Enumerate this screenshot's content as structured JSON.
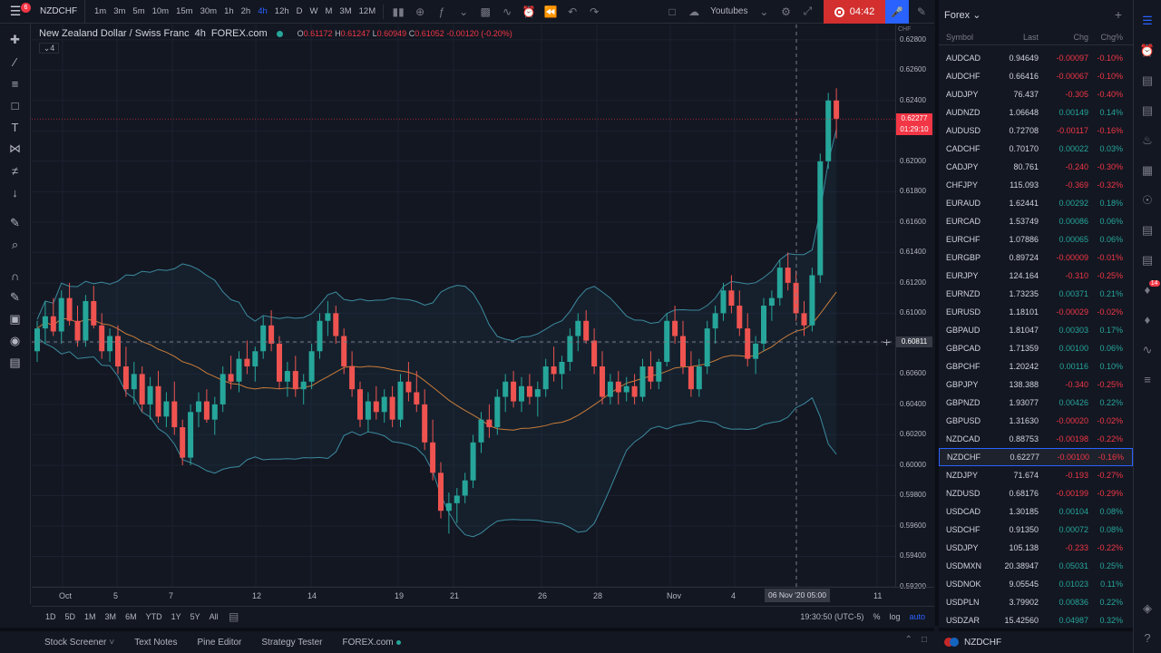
{
  "topbar": {
    "notification_count": "6",
    "symbol": "NZDCHF",
    "intervals": [
      "1m",
      "3m",
      "5m",
      "10m",
      "15m",
      "30m",
      "1h",
      "2h",
      "4h",
      "12h",
      "D",
      "W",
      "M",
      "3M",
      "12M"
    ],
    "active_interval": "4h",
    "layout_name": "Youtubes",
    "recording_time": "04:42"
  },
  "legend": {
    "title": "New Zealand Dollar / Swiss Franc",
    "interval": "4h",
    "source": "FOREX.com",
    "o_label": "O",
    "o": "0.61172",
    "h_label": "H",
    "h": "0.61247",
    "l_label": "L",
    "l": "0.60949",
    "c_label": "C",
    "c": "0.61052",
    "change": "-0.00120 (-0.20%)",
    "indicator_count": "4"
  },
  "price_scale": {
    "currency": "CHF",
    "labels": [
      "0.62800",
      "0.62600",
      "0.62400",
      "0.62200",
      "0.62000",
      "0.61800",
      "0.61600",
      "0.61400",
      "0.61200",
      "0.61000",
      "0.60800",
      "0.60600",
      "0.60400",
      "0.60200",
      "0.60000",
      "0.59800",
      "0.59600",
      "0.59400",
      "0.59200"
    ],
    "current_price": "0.62277",
    "countdown": "01:29:10",
    "crosshair_price": "0.60811"
  },
  "time_scale": {
    "labels": [
      "Oct",
      "5",
      "7",
      "12",
      "14",
      "19",
      "21",
      "26",
      "28",
      "Nov",
      "4",
      "11"
    ],
    "crosshair_time": "06 Nov '20   05:00"
  },
  "range_bar": {
    "ranges": [
      "1D",
      "5D",
      "1M",
      "3M",
      "6M",
      "YTD",
      "1Y",
      "5Y",
      "All"
    ],
    "clock": "19:30:50 (UTC-5)",
    "percent": "%",
    "log": "log",
    "auto": "auto"
  },
  "bottom_tabs": [
    "Stock Screener",
    "Text Notes",
    "Pine Editor",
    "Strategy Tester",
    "FOREX.com"
  ],
  "watchlist": {
    "title": "Forex",
    "columns": {
      "symbol": "Symbol",
      "last": "Last",
      "chg": "Chg",
      "pct": "Chg%"
    },
    "rows": [
      {
        "symbol": "AUDCAD",
        "last": "0.94649",
        "chg": "-0.00097",
        "pct": "-0.10%"
      },
      {
        "symbol": "AUDCHF",
        "last": "0.66416",
        "chg": "-0.00067",
        "pct": "-0.10%"
      },
      {
        "symbol": "AUDJPY",
        "last": "76.437",
        "chg": "-0.305",
        "pct": "-0.40%"
      },
      {
        "symbol": "AUDNZD",
        "last": "1.06648",
        "chg": "0.00149",
        "pct": "0.14%"
      },
      {
        "symbol": "AUDUSD",
        "last": "0.72708",
        "chg": "-0.00117",
        "pct": "-0.16%"
      },
      {
        "symbol": "CADCHF",
        "last": "0.70170",
        "chg": "0.00022",
        "pct": "0.03%"
      },
      {
        "symbol": "CADJPY",
        "last": "80.761",
        "chg": "-0.240",
        "pct": "-0.30%"
      },
      {
        "symbol": "CHFJPY",
        "last": "115.093",
        "chg": "-0.369",
        "pct": "-0.32%"
      },
      {
        "symbol": "EURAUD",
        "last": "1.62441",
        "chg": "0.00292",
        "pct": "0.18%"
      },
      {
        "symbol": "EURCAD",
        "last": "1.53749",
        "chg": "0.00086",
        "pct": "0.06%"
      },
      {
        "symbol": "EURCHF",
        "last": "1.07886",
        "chg": "0.00065",
        "pct": "0.06%"
      },
      {
        "symbol": "EURGBP",
        "last": "0.89724",
        "chg": "-0.00009",
        "pct": "-0.01%"
      },
      {
        "symbol": "EURJPY",
        "last": "124.164",
        "chg": "-0.310",
        "pct": "-0.25%"
      },
      {
        "symbol": "EURNZD",
        "last": "1.73235",
        "chg": "0.00371",
        "pct": "0.21%"
      },
      {
        "symbol": "EURUSD",
        "last": "1.18101",
        "chg": "-0.00029",
        "pct": "-0.02%"
      },
      {
        "symbol": "GBPAUD",
        "last": "1.81047",
        "chg": "0.00303",
        "pct": "0.17%"
      },
      {
        "symbol": "GBPCAD",
        "last": "1.71359",
        "chg": "0.00100",
        "pct": "0.06%"
      },
      {
        "symbol": "GBPCHF",
        "last": "1.20242",
        "chg": "0.00116",
        "pct": "0.10%"
      },
      {
        "symbol": "GBPJPY",
        "last": "138.388",
        "chg": "-0.340",
        "pct": "-0.25%"
      },
      {
        "symbol": "GBPNZD",
        "last": "1.93077",
        "chg": "0.00426",
        "pct": "0.22%"
      },
      {
        "symbol": "GBPUSD",
        "last": "1.31630",
        "chg": "-0.00020",
        "pct": "-0.02%"
      },
      {
        "symbol": "NZDCAD",
        "last": "0.88753",
        "chg": "-0.00198",
        "pct": "-0.22%"
      },
      {
        "symbol": "NZDCHF",
        "last": "0.62277",
        "chg": "-0.00100",
        "pct": "-0.16%"
      },
      {
        "symbol": "NZDJPY",
        "last": "71.674",
        "chg": "-0.193",
        "pct": "-0.27%"
      },
      {
        "symbol": "NZDUSD",
        "last": "0.68176",
        "chg": "-0.00199",
        "pct": "-0.29%"
      },
      {
        "symbol": "USDCAD",
        "last": "1.30185",
        "chg": "0.00104",
        "pct": "0.08%"
      },
      {
        "symbol": "USDCHF",
        "last": "0.91350",
        "chg": "0.00072",
        "pct": "0.08%"
      },
      {
        "symbol": "USDJPY",
        "last": "105.138",
        "chg": "-0.233",
        "pct": "-0.22%"
      },
      {
        "symbol": "USDMXN",
        "last": "20.38947",
        "chg": "0.05031",
        "pct": "0.25%"
      },
      {
        "symbol": "USDNOK",
        "last": "9.05545",
        "chg": "0.01023",
        "pct": "0.11%"
      },
      {
        "symbol": "USDPLN",
        "last": "3.79902",
        "chg": "0.00836",
        "pct": "0.22%"
      },
      {
        "symbol": "USDZAR",
        "last": "15.42560",
        "chg": "0.04987",
        "pct": "0.32%"
      }
    ],
    "selected": "NZDCHF"
  },
  "detail_symbol": "NZDCHF",
  "rail_badge": "14",
  "colors": {
    "up": "#26a69a",
    "down": "#ef5350",
    "accent": "#2962ff",
    "bb": "#3c8a9e",
    "ma": "#c97b3a"
  },
  "chart_data": {
    "type": "candlestick",
    "ylim": [
      0.592,
      0.629
    ],
    "candles": [
      [
        0.6075,
        0.6095,
        0.6068,
        0.609
      ],
      [
        0.609,
        0.6108,
        0.608,
        0.6098
      ],
      [
        0.6098,
        0.611,
        0.6085,
        0.6088
      ],
      [
        0.6088,
        0.6115,
        0.608,
        0.611
      ],
      [
        0.611,
        0.612,
        0.6092,
        0.6095
      ],
      [
        0.6095,
        0.6105,
        0.6078,
        0.6082
      ],
      [
        0.6082,
        0.6112,
        0.6078,
        0.6108
      ],
      [
        0.6108,
        0.6118,
        0.609,
        0.6092
      ],
      [
        0.6092,
        0.61,
        0.607,
        0.6075
      ],
      [
        0.6075,
        0.609,
        0.6068,
        0.6085
      ],
      [
        0.6085,
        0.6092,
        0.606,
        0.6065
      ],
      [
        0.6065,
        0.6078,
        0.6045,
        0.605
      ],
      [
        0.605,
        0.6068,
        0.604,
        0.606
      ],
      [
        0.606,
        0.6065,
        0.6035,
        0.604
      ],
      [
        0.604,
        0.6058,
        0.603,
        0.6052
      ],
      [
        0.6052,
        0.6062,
        0.6028,
        0.6032
      ],
      [
        0.6032,
        0.6048,
        0.6025,
        0.6042
      ],
      [
        0.6042,
        0.6055,
        0.602,
        0.6025
      ],
      [
        0.6025,
        0.603,
        0.6,
        0.6005
      ],
      [
        0.6005,
        0.604,
        0.6,
        0.6035
      ],
      [
        0.6035,
        0.6048,
        0.6025,
        0.6042
      ],
      [
        0.6042,
        0.605,
        0.6028,
        0.603
      ],
      [
        0.603,
        0.6045,
        0.602,
        0.604
      ],
      [
        0.604,
        0.6065,
        0.6035,
        0.606
      ],
      [
        0.606,
        0.6072,
        0.605,
        0.6055
      ],
      [
        0.6055,
        0.6075,
        0.6048,
        0.607
      ],
      [
        0.607,
        0.6082,
        0.606,
        0.6065
      ],
      [
        0.6065,
        0.6078,
        0.6055,
        0.6075
      ],
      [
        0.6075,
        0.6098,
        0.607,
        0.6092
      ],
      [
        0.6092,
        0.6102,
        0.6075,
        0.608
      ],
      [
        0.608,
        0.6085,
        0.605,
        0.6055
      ],
      [
        0.6055,
        0.6068,
        0.6045,
        0.6062
      ],
      [
        0.6062,
        0.6072,
        0.6045,
        0.605
      ],
      [
        0.605,
        0.606,
        0.604,
        0.6055
      ],
      [
        0.6055,
        0.608,
        0.605,
        0.6075
      ],
      [
        0.6075,
        0.61,
        0.607,
        0.6095
      ],
      [
        0.6095,
        0.6108,
        0.6085,
        0.61
      ],
      [
        0.61,
        0.6105,
        0.608,
        0.6085
      ],
      [
        0.6085,
        0.609,
        0.606,
        0.6065
      ],
      [
        0.6065,
        0.6075,
        0.6045,
        0.605
      ],
      [
        0.605,
        0.6055,
        0.6025,
        0.603
      ],
      [
        0.603,
        0.6048,
        0.6022,
        0.6042
      ],
      [
        0.6042,
        0.6052,
        0.603,
        0.6035
      ],
      [
        0.6035,
        0.605,
        0.6028,
        0.6045
      ],
      [
        0.6045,
        0.6052,
        0.6025,
        0.603
      ],
      [
        0.603,
        0.606,
        0.6025,
        0.6055
      ],
      [
        0.6055,
        0.6068,
        0.6042,
        0.6048
      ],
      [
        0.6048,
        0.6062,
        0.6035,
        0.604
      ],
      [
        0.604,
        0.605,
        0.601,
        0.6015
      ],
      [
        0.6015,
        0.603,
        0.599,
        0.5995
      ],
      [
        0.5995,
        0.6002,
        0.5965,
        0.597
      ],
      [
        0.597,
        0.5982,
        0.5955,
        0.5975
      ],
      [
        0.5975,
        0.5985,
        0.5962,
        0.598
      ],
      [
        0.598,
        0.5995,
        0.5975,
        0.599
      ],
      [
        0.599,
        0.602,
        0.5985,
        0.6015
      ],
      [
        0.6015,
        0.6035,
        0.6008,
        0.603
      ],
      [
        0.603,
        0.604,
        0.6018,
        0.6025
      ],
      [
        0.6025,
        0.605,
        0.602,
        0.6045
      ],
      [
        0.6045,
        0.606,
        0.6035,
        0.6055
      ],
      [
        0.6055,
        0.6062,
        0.6038,
        0.6042
      ],
      [
        0.6042,
        0.6058,
        0.6035,
        0.6052
      ],
      [
        0.6052,
        0.606,
        0.604,
        0.6045
      ],
      [
        0.6045,
        0.6055,
        0.6032,
        0.605
      ],
      [
        0.605,
        0.607,
        0.6045,
        0.6065
      ],
      [
        0.6065,
        0.6078,
        0.6055,
        0.606
      ],
      [
        0.606,
        0.6072,
        0.605,
        0.6068
      ],
      [
        0.6068,
        0.609,
        0.6062,
        0.6085
      ],
      [
        0.6085,
        0.61,
        0.6075,
        0.6095
      ],
      [
        0.6095,
        0.6102,
        0.608,
        0.6082
      ],
      [
        0.6082,
        0.609,
        0.606,
        0.6065
      ],
      [
        0.6065,
        0.6075,
        0.604,
        0.6045
      ],
      [
        0.6045,
        0.606,
        0.604,
        0.6055
      ],
      [
        0.6055,
        0.6062,
        0.604,
        0.6048
      ],
      [
        0.6048,
        0.6058,
        0.6042,
        0.6052
      ],
      [
        0.6052,
        0.606,
        0.604,
        0.6045
      ],
      [
        0.6045,
        0.607,
        0.6042,
        0.6065
      ],
      [
        0.6065,
        0.6075,
        0.605,
        0.6055
      ],
      [
        0.6055,
        0.607,
        0.605,
        0.6068
      ],
      [
        0.6068,
        0.61,
        0.6065,
        0.6095
      ],
      [
        0.6095,
        0.6105,
        0.608,
        0.6085
      ],
      [
        0.6085,
        0.6095,
        0.606,
        0.6065
      ],
      [
        0.6065,
        0.6075,
        0.6045,
        0.605
      ],
      [
        0.605,
        0.607,
        0.6045,
        0.6065
      ],
      [
        0.6065,
        0.6095,
        0.606,
        0.609
      ],
      [
        0.609,
        0.6105,
        0.608,
        0.61
      ],
      [
        0.61,
        0.612,
        0.6095,
        0.6115
      ],
      [
        0.6115,
        0.6125,
        0.61,
        0.6105
      ],
      [
        0.6105,
        0.6115,
        0.6085,
        0.609
      ],
      [
        0.609,
        0.61,
        0.6065,
        0.607
      ],
      [
        0.607,
        0.6085,
        0.606,
        0.608
      ],
      [
        0.608,
        0.611,
        0.6075,
        0.6105
      ],
      [
        0.6105,
        0.6115,
        0.6095,
        0.611
      ],
      [
        0.611,
        0.6135,
        0.6105,
        0.613
      ],
      [
        0.613,
        0.614,
        0.6115,
        0.612
      ],
      [
        0.612,
        0.6128,
        0.6095,
        0.61
      ],
      [
        0.61,
        0.6108,
        0.6085,
        0.6092
      ],
      [
        0.6092,
        0.613,
        0.6088,
        0.6125
      ],
      [
        0.6125,
        0.6205,
        0.612,
        0.62
      ],
      [
        0.62,
        0.6245,
        0.6195,
        0.624
      ],
      [
        0.624,
        0.6248,
        0.6215,
        0.6228
      ]
    ]
  }
}
